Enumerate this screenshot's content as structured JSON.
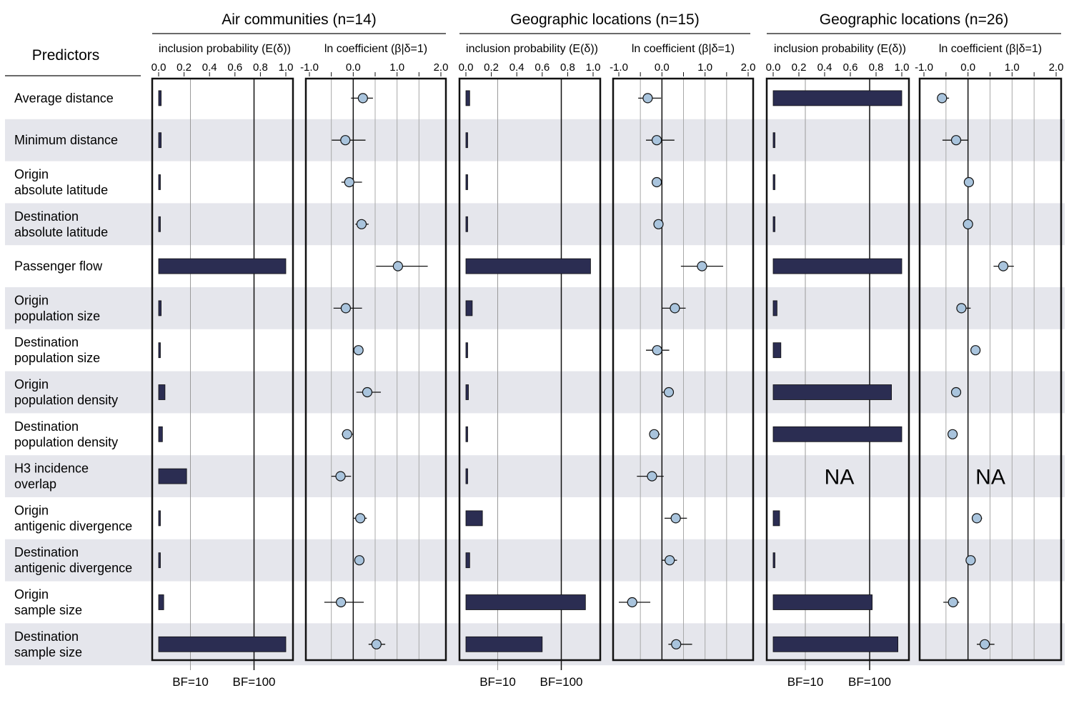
{
  "header": {
    "predictors_label": "Predictors"
  },
  "rows": [
    "Average distance",
    "Minimum distance",
    "Origin\nabsolute latitude",
    "Destination\nabsolute latitude",
    "Passenger flow",
    "Origin\npopulation size",
    "Destination\npopulation size",
    "Origin\npopulation density",
    "Destination\npopulation density",
    "H3 incidence\noverlap",
    "Origin\nantigenic divergence",
    "Destination\nantigenic divergence",
    "Origin\nsample size",
    "Destination\nsample size"
  ],
  "panel_labels": {
    "inclusion": "inclusion probability (E(δ))",
    "coefficient": "ln coefficient (β|δ=1)"
  },
  "bf_labels": [
    "BF=10",
    "BF=100"
  ],
  "na_label": "NA",
  "colors": {
    "bar": "#2b2d52",
    "point": "#a9c4dd",
    "band": "#e5e6ec"
  },
  "chart_data": [
    {
      "type": "bar",
      "title": "Air communities (n=14)",
      "xlabel": "inclusion probability (E(δ))",
      "xlim": [
        0,
        1
      ],
      "xticks": [
        "0.0",
        "0.2",
        "0.4",
        "0.6",
        "0.8",
        "1.0"
      ],
      "categories": [
        "Average distance",
        "Minimum distance",
        "Origin absolute latitude",
        "Destination absolute latitude",
        "Passenger flow",
        "Origin population size",
        "Destination population size",
        "Origin population density",
        "Destination population density",
        "H3 incidence overlap",
        "Origin antigenic divergence",
        "Destination antigenic divergence",
        "Origin sample size",
        "Destination sample size"
      ],
      "values": [
        0.02,
        0.02,
        0.01,
        0.01,
        1.0,
        0.02,
        0.01,
        0.05,
        0.03,
        0.22,
        0.01,
        0.01,
        0.04,
        1.0
      ],
      "bf_lines": [
        0.25,
        0.75
      ]
    },
    {
      "type": "scatter",
      "title": "Air communities (n=14)",
      "xlabel": "ln coefficient (β|δ=1)",
      "xlim": [
        -1.0,
        2.0
      ],
      "xticks": [
        "-1.0",
        "0.0",
        "1.0",
        "2.0"
      ],
      "categories": [
        "Average distance",
        "Minimum distance",
        "Origin absolute latitude",
        "Destination absolute latitude",
        "Passenger flow",
        "Origin population size",
        "Destination population size",
        "Origin population density",
        "Destination population density",
        "H3 incidence overlap",
        "Origin antigenic divergence",
        "Destination antigenic divergence",
        "Origin sample size",
        "Destination sample size"
      ],
      "values": [
        0.22,
        -0.18,
        -0.09,
        0.19,
        1.02,
        -0.17,
        0.12,
        0.32,
        -0.14,
        -0.29,
        0.16,
        0.14,
        -0.28,
        0.53
      ],
      "ci_low": [
        -0.05,
        -0.49,
        -0.27,
        0.05,
        0.52,
        -0.45,
        0.12,
        0.07,
        -0.26,
        -0.5,
        0.0,
        0.14,
        -0.66,
        0.35
      ],
      "ci_high": [
        0.45,
        0.28,
        0.2,
        0.35,
        1.7,
        0.2,
        0.12,
        0.63,
        -0.01,
        -0.05,
        0.31,
        0.14,
        0.24,
        0.73
      ],
      "ci_shown": [
        true,
        true,
        true,
        true,
        true,
        true,
        false,
        true,
        true,
        true,
        true,
        false,
        true,
        true
      ]
    },
    {
      "type": "bar",
      "title": "Geographic locations (n=15)",
      "xlabel": "inclusion probability (E(δ))",
      "xlim": [
        0,
        1
      ],
      "xticks": [
        "0.0",
        "0.2",
        "0.4",
        "0.6",
        "0.8",
        "1.0"
      ],
      "categories": [
        "Average distance",
        "Minimum distance",
        "Origin absolute latitude",
        "Destination absolute latitude",
        "Passenger flow",
        "Origin population size",
        "Destination population size",
        "Origin population density",
        "Destination population density",
        "H3 incidence overlap",
        "Origin antigenic divergence",
        "Destination antigenic divergence",
        "Origin sample size",
        "Destination sample size"
      ],
      "values": [
        0.03,
        0.01,
        0.01,
        0.01,
        0.98,
        0.05,
        0.01,
        0.02,
        0.01,
        0.01,
        0.13,
        0.03,
        0.94,
        0.6
      ],
      "bf_lines": [
        0.25,
        0.75
      ]
    },
    {
      "type": "scatter",
      "title": "Geographic locations (n=15)",
      "xlabel": "ln coefficient (β|δ=1)",
      "xlim": [
        -1.0,
        2.0
      ],
      "xticks": [
        "-1.0",
        "0.0",
        "1.0",
        "2.0"
      ],
      "categories": [
        "Average distance",
        "Minimum distance",
        "Origin absolute latitude",
        "Destination absolute latitude",
        "Passenger flow",
        "Origin population size",
        "Destination population size",
        "Origin population density",
        "Destination population density",
        "H3 incidence overlap",
        "Origin antigenic divergence",
        "Destination antigenic divergence",
        "Origin sample size",
        "Destination sample size"
      ],
      "values": [
        -0.33,
        -0.12,
        -0.12,
        -0.08,
        0.93,
        0.3,
        -0.11,
        0.16,
        -0.18,
        -0.23,
        0.32,
        0.18,
        -0.69,
        0.33
      ],
      "ci_low": [
        -0.55,
        -0.37,
        -0.12,
        -0.08,
        0.44,
        0.0,
        -0.37,
        0.0,
        -0.28,
        -0.58,
        0.06,
        -0.01,
        -1.0,
        0.15
      ],
      "ci_high": [
        -0.02,
        0.29,
        -0.12,
        -0.08,
        1.42,
        0.55,
        0.17,
        0.27,
        -0.05,
        0.04,
        0.58,
        0.35,
        -0.27,
        0.7
      ],
      "ci_shown": [
        true,
        true,
        false,
        false,
        true,
        true,
        true,
        true,
        true,
        true,
        true,
        true,
        true,
        true
      ]
    },
    {
      "type": "bar",
      "title": "Geographic locations (n=26)",
      "xlabel": "inclusion probability (E(δ))",
      "xlim": [
        0,
        1
      ],
      "xticks": [
        "0.0",
        "0.2",
        "0.4",
        "0.6",
        "0.8",
        "1.0"
      ],
      "categories": [
        "Average distance",
        "Minimum distance",
        "Origin absolute latitude",
        "Destination absolute latitude",
        "Passenger flow",
        "Origin population size",
        "Destination population size",
        "Origin population density",
        "Destination population density",
        "H3 incidence overlap",
        "Origin antigenic divergence",
        "Destination antigenic divergence",
        "Origin sample size",
        "Destination sample size"
      ],
      "values": [
        1.0,
        0.01,
        0.01,
        0.01,
        1.0,
        0.03,
        0.06,
        0.92,
        1.0,
        null,
        0.05,
        0.01,
        0.77,
        0.97
      ],
      "bf_lines": [
        0.25,
        0.75
      ]
    },
    {
      "type": "scatter",
      "title": "Geographic locations (n=26)",
      "xlabel": "ln coefficient (β|δ=1)",
      "xlim": [
        -1.0,
        2.0
      ],
      "xticks": [
        "-1.0",
        "0.0",
        "1.0",
        "2.0"
      ],
      "categories": [
        "Average distance",
        "Minimum distance",
        "Origin absolute latitude",
        "Destination absolute latitude",
        "Passenger flow",
        "Origin population size",
        "Destination population size",
        "Origin population density",
        "Destination population density",
        "H3 incidence overlap",
        "Origin antigenic divergence",
        "Destination antigenic divergence",
        "Origin sample size",
        "Destination sample size"
      ],
      "values": [
        -0.59,
        -0.27,
        0.02,
        0.0,
        0.8,
        -0.15,
        0.17,
        -0.27,
        -0.35,
        null,
        0.2,
        0.06,
        -0.34,
        0.38
      ],
      "ci_low": [
        -0.68,
        -0.58,
        0.02,
        0.0,
        0.58,
        -0.22,
        0.17,
        -0.27,
        -0.35,
        null,
        0.09,
        0.06,
        -0.56,
        0.2
      ],
      "ci_high": [
        -0.43,
        0.01,
        0.02,
        0.0,
        1.04,
        0.06,
        0.17,
        -0.27,
        -0.35,
        null,
        0.32,
        0.06,
        -0.2,
        0.6
      ],
      "ci_shown": [
        true,
        true,
        false,
        false,
        true,
        true,
        false,
        false,
        false,
        false,
        true,
        false,
        true,
        true
      ]
    }
  ]
}
